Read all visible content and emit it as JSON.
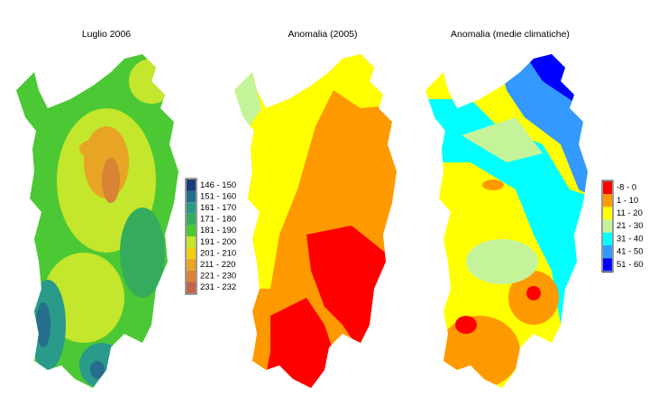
{
  "panels": [
    {
      "title": "Luglio 2006",
      "legend": [
        {
          "label": "146 - 150",
          "color": "#1b3b78"
        },
        {
          "label": "151 - 160",
          "color": "#256e8c"
        },
        {
          "label": "161 - 170",
          "color": "#2a9a8a"
        },
        {
          "label": "171 - 180",
          "color": "#34ac5c"
        },
        {
          "label": "181 - 190",
          "color": "#4cc834"
        },
        {
          "label": "191 - 200",
          "color": "#c4e62c"
        },
        {
          "label": "201 - 210",
          "color": "#f0d010"
        },
        {
          "label": "211 - 220",
          "color": "#e8a424"
        },
        {
          "label": "221 - 230",
          "color": "#d88434"
        },
        {
          "label": "231 - 232",
          "color": "#c0644a"
        }
      ]
    },
    {
      "title": "Anomalia (2005)"
    },
    {
      "title": "Anomalia (medie climatiche)",
      "legend": [
        {
          "label": "-8 - 0",
          "color": "#ff0000"
        },
        {
          "label": "1 - 10",
          "color": "#ff9900"
        },
        {
          "label": "11 - 20",
          "color": "#ffff00"
        },
        {
          "label": "21 - 30",
          "color": "#c4f39a"
        },
        {
          "label": "31 - 40",
          "color": "#00ffff"
        },
        {
          "label": "41 - 50",
          "color": "#3399ff"
        },
        {
          "label": "51 - 60",
          "color": "#0000ff"
        }
      ]
    }
  ]
}
